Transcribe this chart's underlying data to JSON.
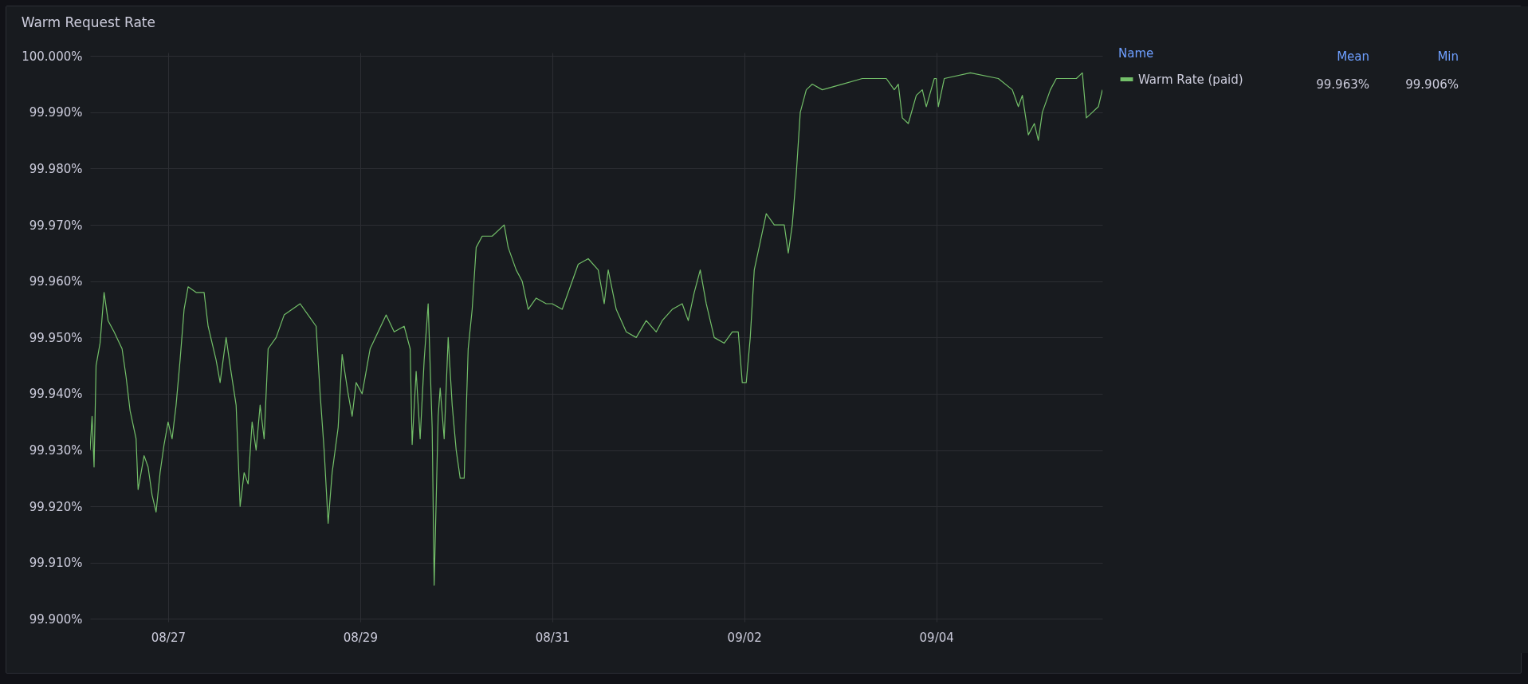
{
  "chart_data": {
    "type": "line",
    "title": "Warm Request Rate",
    "legend_title": "Name",
    "legend": "right",
    "grid": true,
    "marker": "none",
    "line_style": "solid",
    "annotations": [
      "Mean",
      "Min",
      "99.963%",
      "99.906%"
    ],
    "ylim": [
      99.8995,
      100.0006
    ],
    "yticks": [
      {
        "value": 99.9,
        "label": "99.900%"
      },
      {
        "value": 99.91,
        "label": "99.910%"
      },
      {
        "value": 99.92,
        "label": "99.920%"
      },
      {
        "value": 99.93,
        "label": "99.930%"
      },
      {
        "value": 99.94,
        "label": "99.940%"
      },
      {
        "value": 99.95,
        "label": "99.950%"
      },
      {
        "value": 99.96,
        "label": "99.960%"
      },
      {
        "value": 99.97,
        "label": "99.970%"
      },
      {
        "value": 99.98,
        "label": "99.980%"
      },
      {
        "value": 99.99,
        "label": "99.990%"
      },
      {
        "value": 100,
        "label": "100.000%"
      }
    ],
    "xlim": [
      "--08-26T04:30",
      "--09-05T17:30"
    ],
    "xticks": [
      {
        "value": "--08-27",
        "label": "08/27"
      },
      {
        "value": "--08-29",
        "label": "08/29"
      },
      {
        "value": "--08-31",
        "label": "08/31"
      },
      {
        "value": "--09-02",
        "label": "09/02"
      },
      {
        "value": "--09-04",
        "label": "09/04"
      }
    ],
    "x": [
      "--08-26T04:30",
      "--08-26T05:00",
      "--08-26T05:30",
      "--08-26T06:00",
      "--08-26T07:00",
      "--08-26T08:00",
      "--08-26T09:00",
      "--08-26T10:30",
      "--08-26T12:30",
      "--08-26T13:30",
      "--08-26T14:30",
      "--08-26T16:00",
      "--08-26T16:30",
      "--08-26T18:00",
      "--08-26T19:00",
      "--08-26T20:00",
      "--08-26T21:00",
      "--08-26T22:00",
      "--08-26T23:00",
      "--08-27T00:00",
      "--08-27T01:00",
      "--08-27T02:00",
      "--08-27T03:00",
      "--08-27T04:00",
      "--08-27T05:00",
      "--08-27T07:00",
      "--08-27T09:00",
      "--08-27T10:00",
      "--08-27T12:00",
      "--08-27T13:00",
      "--08-27T14:30",
      "--08-27T15:30",
      "--08-27T17:00",
      "--08-27T18:00",
      "--08-27T19:00",
      "--08-27T20:00",
      "--08-27T21:00",
      "--08-27T22:00",
      "--08-27T23:00",
      "--08-28T00:00",
      "--08-28T01:00",
      "--08-28T03:00",
      "--08-28T05:00",
      "--08-28T07:00",
      "--08-28T09:00",
      "--08-28T11:00",
      "--08-28T13:00",
      "--08-28T14:00",
      "--08-28T15:00",
      "--08-28T16:00",
      "--08-28T17:00",
      "--08-28T18:30",
      "--08-28T19:30",
      "--08-28T21:00",
      "--08-28T22:00",
      "--08-28T23:00",
      "--08-29T00:30",
      "--08-29T02:30",
      "--08-29T04:30",
      "--08-29T06:30",
      "--08-29T08:30",
      "--08-29T11:00",
      "--08-29T12:30",
      "--08-29T13:00",
      "--08-29T14:00",
      "--08-29T15:00",
      "--08-29T16:00",
      "--08-29T17:00",
      "--08-29T18:00",
      "--08-29T18:30",
      "--08-29T19:30",
      "--08-29T20:00",
      "--08-29T21:00",
      "--08-29T22:00",
      "--08-29T23:00",
      "--08-30T00:00",
      "--08-30T01:00",
      "--08-30T02:00",
      "--08-30T03:00",
      "--08-30T04:00",
      "--08-30T05:00",
      "--08-30T06:30",
      "--08-30T09:00",
      "--08-30T12:00",
      "--08-30T13:00",
      "--08-30T15:00",
      "--08-30T16:30",
      "--08-30T18:00",
      "--08-30T20:00",
      "--08-30T22:30",
      "--08-31T00:00",
      "--08-31T02:30",
      "--08-31T04:30",
      "--08-31T06:30",
      "--08-31T09:00",
      "--08-31T11:30",
      "--08-31T13:00",
      "--08-31T14:00",
      "--08-31T16:00",
      "--08-31T18:30",
      "--08-31T21:00",
      "--08-31T23:30",
      "--09-01T02:00",
      "--09-01T03:30",
      "--09-01T06:00",
      "--09-01T08:30",
      "--09-01T10:00",
      "--09-01T11:30",
      "--09-01T13:00",
      "--09-01T14:30",
      "--09-01T16:30",
      "--09-01T19:00",
      "--09-01T21:00",
      "--09-01T22:30",
      "--09-01T23:30",
      "--09-02T00:30",
      "--09-02T01:30",
      "--09-02T02:30",
      "--09-02T04:00",
      "--09-02T05:30",
      "--09-02T07:30",
      "--09-02T10:00",
      "--09-02T11:00",
      "--09-02T12:00",
      "--09-02T13:00",
      "--09-02T14:00",
      "--09-02T15:30",
      "--09-02T17:00",
      "--09-02T19:30",
      "--09-03T00:30",
      "--09-03T05:30",
      "--09-03T11:30",
      "--09-03T13:30",
      "--09-03T14:30",
      "--09-03T15:30",
      "--09-03T17:00",
      "--09-03T19:00",
      "--09-03T20:30",
      "--09-03T21:30",
      "--09-03T23:30",
      "--09-04T00:00",
      "--09-04T00:30",
      "--09-04T02:00",
      "--09-04T08:30",
      "--09-04T15:30",
      "--09-04T19:00",
      "--09-04T20:30",
      "--09-04T21:30",
      "--09-04T23:00",
      "--09-05T00:30",
      "--09-05T01:30",
      "--09-05T02:30",
      "--09-05T04:30",
      "--09-05T06:00",
      "--09-05T11:00",
      "--09-05T12:30",
      "--09-05T13:30",
      "--09-05T15:00",
      "--09-05T16:30",
      "--09-05T17:30"
    ],
    "series": [
      {
        "name": "Warm Rate (paid)",
        "color": "#73bf69",
        "values": [
          99.93,
          99.936,
          99.927,
          99.945,
          99.949,
          99.958,
          99.953,
          99.951,
          99.948,
          99.943,
          99.937,
          99.932,
          99.923,
          99.929,
          99.927,
          99.922,
          99.919,
          99.926,
          99.931,
          99.935,
          99.932,
          99.938,
          99.946,
          99.955,
          99.959,
          99.958,
          99.958,
          99.952,
          99.946,
          99.942,
          99.95,
          99.945,
          99.938,
          99.92,
          99.926,
          99.924,
          99.935,
          99.93,
          99.938,
          99.932,
          99.948,
          99.95,
          99.954,
          99.955,
          99.956,
          99.954,
          99.952,
          99.94,
          99.93,
          99.917,
          99.926,
          99.934,
          99.947,
          99.94,
          99.936,
          99.942,
          99.94,
          99.948,
          99.951,
          99.954,
          99.951,
          99.952,
          99.948,
          99.931,
          99.944,
          99.932,
          99.946,
          99.956,
          99.934,
          99.906,
          99.936,
          99.941,
          99.932,
          99.95,
          99.938,
          99.93,
          99.925,
          99.925,
          99.948,
          99.955,
          99.966,
          99.968,
          99.968,
          99.97,
          99.966,
          99.962,
          99.96,
          99.955,
          99.957,
          99.956,
          99.956,
          99.955,
          99.959,
          99.963,
          99.964,
          99.962,
          99.956,
          99.962,
          99.955,
          99.951,
          99.95,
          99.953,
          99.951,
          99.953,
          99.955,
          99.956,
          99.953,
          99.958,
          99.962,
          99.956,
          99.95,
          99.949,
          99.951,
          99.951,
          99.942,
          99.942,
          99.95,
          99.962,
          99.967,
          99.972,
          99.97,
          99.97,
          99.965,
          99.97,
          99.979,
          99.99,
          99.994,
          99.995,
          99.994,
          99.995,
          99.996,
          99.996,
          99.994,
          99.995,
          99.989,
          99.988,
          99.993,
          99.994,
          99.991,
          99.996,
          99.996,
          99.991,
          99.996,
          99.997,
          99.996,
          99.994,
          99.991,
          99.993,
          99.986,
          99.988,
          99.985,
          99.99,
          99.994,
          99.996,
          99.996,
          99.997,
          99.989,
          99.99,
          99.991,
          99.994
        ]
      }
    ]
  }
}
